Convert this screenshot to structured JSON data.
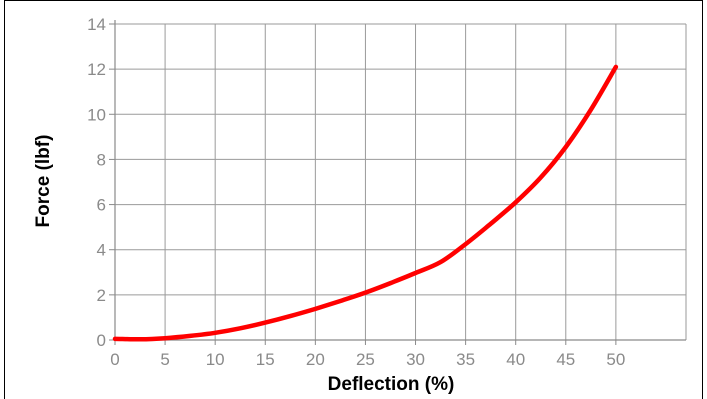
{
  "chart_data": {
    "type": "line",
    "xlabel": "Deflection (%)",
    "ylabel": "Force (lbf)",
    "xlim": [
      0,
      57
    ],
    "ylim": [
      0,
      14
    ],
    "x_ticks": [
      0,
      5,
      10,
      15,
      20,
      25,
      30,
      35,
      40,
      45,
      50
    ],
    "y_ticks": [
      0,
      2,
      4,
      6,
      8,
      10,
      12,
      14
    ],
    "grid": true,
    "series": [
      {
        "color": "#ff0000",
        "x": [
          0,
          2.5,
          5,
          7.5,
          10,
          12.5,
          15,
          17.5,
          20,
          22.5,
          25,
          27.5,
          30,
          32.5,
          35,
          37.5,
          40,
          42.5,
          45,
          47.5,
          50
        ],
        "y": [
          0.05,
          0.03,
          0.08,
          0.18,
          0.32,
          0.52,
          0.77,
          1.06,
          1.38,
          1.73,
          2.1,
          2.52,
          2.97,
          3.45,
          4.25,
          5.15,
          6.1,
          7.2,
          8.55,
          10.2,
          12.1
        ]
      }
    ]
  }
}
